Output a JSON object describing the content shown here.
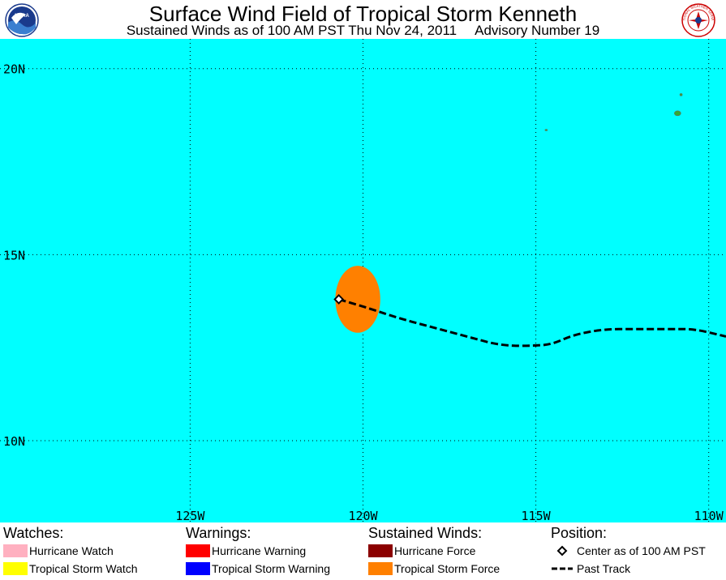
{
  "header": {
    "title": "Surface Wind Field of Tropical Storm Kenneth",
    "subtitle_time": "Sustained Winds as of 100 AM PST Thu Nov 24, 2011",
    "subtitle_advisory": "Advisory Number 19"
  },
  "logos": {
    "left_icon": "noaa-logo-icon",
    "left_text": "NOAA",
    "right_icon": "national-weather-service-logo-icon",
    "right_text": "NATIONAL WEATHER SERVICE"
  },
  "map": {
    "ocean_color": "#00ffff",
    "land_color": "#33aa33",
    "grid_color": "#000000",
    "lat_labels": [
      {
        "lat": 20,
        "label": "20N"
      },
      {
        "lat": 15,
        "label": "15N"
      },
      {
        "lat": 10,
        "label": "10N"
      }
    ],
    "lon_labels": [
      {
        "lon": -125,
        "label": "125W"
      },
      {
        "lon": -120,
        "label": "120W"
      },
      {
        "lon": -115,
        "label": "115W"
      },
      {
        "lon": -110,
        "label": "110W"
      }
    ],
    "extent": {
      "lon_min": -130.5,
      "lon_max": -109.5,
      "lat_min": 7.8,
      "lat_max": 20.8
    },
    "islands": [
      {
        "name": "Isla Socorro",
        "lon": -110.9,
        "lat": 18.8
      },
      {
        "name": "Isla San Benedicto",
        "lon": -110.8,
        "lat": 19.3
      },
      {
        "name": "Isla Clarion",
        "lon": -114.7,
        "lat": 18.35
      }
    ],
    "storm": {
      "center": {
        "lon": -120.7,
        "lat": 13.8
      },
      "tropical_storm_force_color": "#ff8000",
      "tropical_storm_force_extent": {
        "lon_min": -120.8,
        "lon_max": -119.5,
        "lat_min": 12.9,
        "lat_max": 14.7
      },
      "past_track": [
        [
          -120.7,
          13.8
        ],
        [
          -119.8,
          13.55
        ],
        [
          -119.0,
          13.3
        ],
        [
          -118.0,
          13.05
        ],
        [
          -117.0,
          12.8
        ],
        [
          -116.0,
          12.55
        ],
        [
          -115.0,
          12.55
        ],
        [
          -114.5,
          12.6
        ],
        [
          -113.9,
          12.85
        ],
        [
          -113.0,
          13.0
        ],
        [
          -112.0,
          13.0
        ],
        [
          -111.0,
          13.0
        ],
        [
          -110.4,
          13.0
        ],
        [
          -109.5,
          12.8
        ]
      ]
    }
  },
  "legend": {
    "watches": {
      "heading": "Watches:",
      "items": [
        {
          "label": "Hurricane Watch",
          "color": "#ffb0c0"
        },
        {
          "label": "Tropical Storm Watch",
          "color": "#ffff00"
        }
      ]
    },
    "warnings": {
      "heading": "Warnings:",
      "items": [
        {
          "label": "Hurricane Warning",
          "color": "#ff0000"
        },
        {
          "label": "Tropical Storm Warning",
          "color": "#0000ff"
        }
      ]
    },
    "winds": {
      "heading": "Sustained Winds:",
      "items": [
        {
          "label": "Hurricane Force",
          "color": "#8b0000"
        },
        {
          "label": "Tropical Storm Force",
          "color": "#ff8000"
        }
      ]
    },
    "position": {
      "heading": "Position:",
      "center_label": "Center as of 100 AM PST",
      "track_label": "Past Track"
    }
  }
}
